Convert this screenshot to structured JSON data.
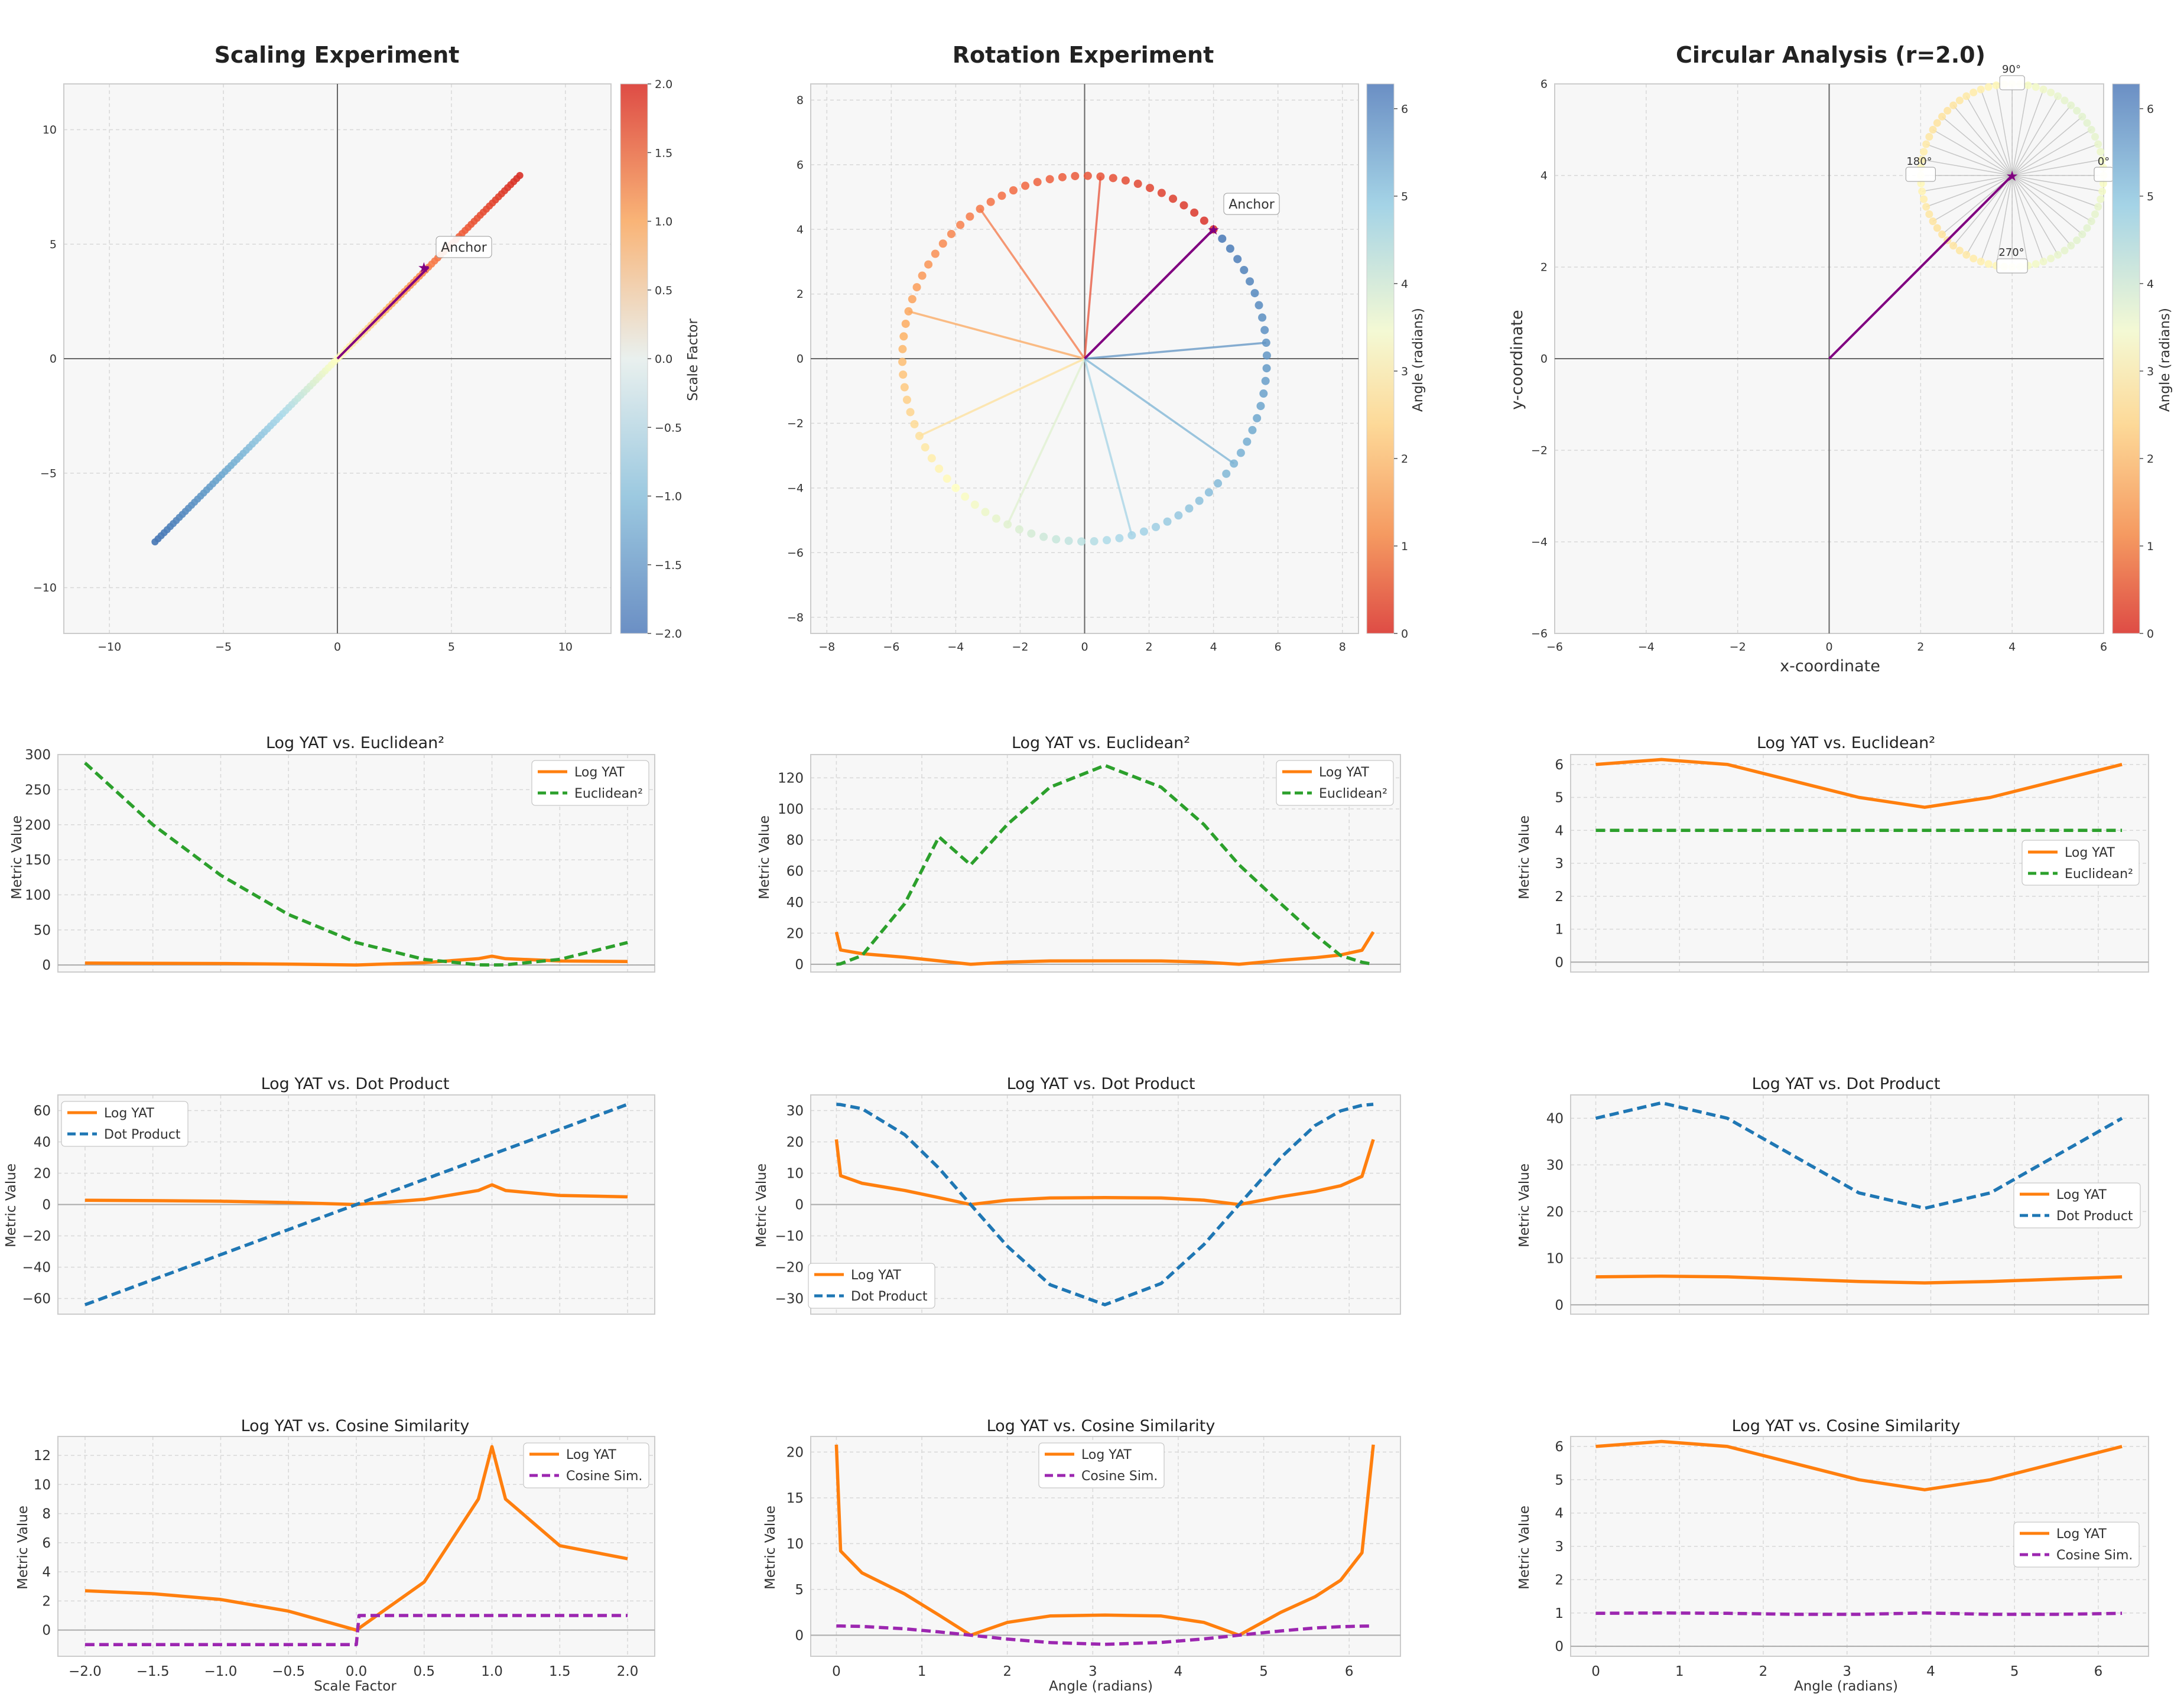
{
  "figure": {
    "panels": {
      "scaling": {
        "title": "Scaling Experiment",
        "anchor_label": "Anchor",
        "colorbar_label": "Scale Factor"
      },
      "rotation": {
        "title": "Rotation Experiment",
        "anchor_label": "Anchor",
        "colorbar_label": "Angle (radians)"
      },
      "circular": {
        "title": "Circular Analysis (r=2.0)",
        "xlabel": "x-coordinate",
        "ylabel": "y-coordinate",
        "colorbar_label": "Angle (radians)",
        "angle_labels": [
          "0°",
          "90°",
          "180°",
          "270°"
        ]
      }
    },
    "metric_titles": [
      "Log YAT vs. Euclidean²",
      "Log YAT vs. Dot Product",
      "Log YAT vs. Cosine Similarity"
    ],
    "metric_ylabel": "Metric Value",
    "legend": {
      "log_yat": "Log YAT",
      "euclidean": "Euclidean²",
      "dot": "Dot Product",
      "cosine": "Cosine Sim."
    },
    "xlabels": {
      "scale": "Scale Factor",
      "angle": "Angle (radians)"
    },
    "colors": {
      "log_yat": "#ff7f0e",
      "euclidean": "#2ca02c",
      "dot": "#1f77b4",
      "cosine": "#9c27b0",
      "anchor": "#800080"
    }
  },
  "chart_data": [
    {
      "id": "scaling_vectors",
      "type": "scatter",
      "title": "Scaling Experiment",
      "anchor": [
        4,
        4
      ],
      "scale_range": [
        -2,
        2
      ],
      "points": "anchor × scale factor",
      "xlim": [
        -12,
        12
      ],
      "ylim": [
        -12,
        12
      ],
      "xticks": [
        -10,
        -5,
        0,
        5,
        10
      ],
      "yticks": [
        -10,
        -5,
        0,
        5,
        10
      ],
      "colorbar": {
        "label": "Scale Factor",
        "range": [
          -2,
          2
        ],
        "ticks": [
          -2.0,
          -1.5,
          -1.0,
          -0.5,
          0.0,
          0.5,
          1.0,
          1.5,
          2.0
        ],
        "colormap": "RdYlBu"
      }
    },
    {
      "id": "rotation_vectors",
      "type": "scatter",
      "title": "Rotation Experiment",
      "anchor": [
        4,
        4
      ],
      "radius": 5.657,
      "angle_range": [
        0,
        6.283
      ],
      "xlim": [
        -8.5,
        8.5
      ],
      "ylim": [
        -8.5,
        8.5
      ],
      "xticks": [
        -8,
        -6,
        -4,
        -2,
        0,
        2,
        4,
        6,
        8
      ],
      "yticks": [
        -8,
        -6,
        -4,
        -2,
        0,
        2,
        4,
        6,
        8
      ],
      "colorbar": {
        "label": "Angle (radians)",
        "range": [
          0,
          6.283
        ],
        "ticks": [
          0,
          1,
          2,
          3,
          4,
          5,
          6
        ],
        "colormap": "RdYlBu"
      }
    },
    {
      "id": "circular_vectors",
      "type": "scatter",
      "title": "Circular Analysis (r=2.0)",
      "anchor": [
        4,
        4
      ],
      "radius": 2.0,
      "angle_range": [
        0,
        6.283
      ],
      "xlim": [
        -6,
        6
      ],
      "ylim": [
        -6,
        6
      ],
      "xticks": [
        -6,
        -4,
        -2,
        0,
        2,
        4,
        6
      ],
      "yticks": [
        -6,
        -4,
        -2,
        0,
        2,
        4,
        6
      ],
      "xlabel": "x-coordinate",
      "ylabel": "y-coordinate",
      "colorbar": {
        "label": "Angle (radians)",
        "range": [
          0,
          6.283
        ],
        "ticks": [
          0,
          1,
          2,
          3,
          4,
          5,
          6
        ],
        "colormap": "RdYlBu"
      }
    },
    {
      "id": "scale_euclid",
      "type": "line",
      "title": "Log YAT vs. Euclidean²",
      "x": [
        -2.0,
        -1.5,
        -1.0,
        -0.5,
        0.0,
        0.5,
        0.9,
        1.0,
        1.1,
        1.5,
        2.0
      ],
      "series": [
        {
          "name": "Log YAT",
          "values": [
            2.7,
            2.5,
            2.1,
            1.3,
            0.0,
            3.3,
            9.0,
            12.6,
            9.0,
            5.8,
            4.9
          ]
        },
        {
          "name": "Euclidean²",
          "values": [
            288,
            200,
            128,
            72,
            32,
            8,
            0.3,
            0,
            0.3,
            8,
            32
          ]
        }
      ],
      "ylim": [
        -10,
        300
      ],
      "yticks": [
        0,
        50,
        100,
        150,
        200,
        250,
        300
      ],
      "xlim": [
        -2.2,
        2.2
      ],
      "ylabel": "Metric Value",
      "legend": "top-right"
    },
    {
      "id": "rot_euclid",
      "type": "line",
      "title": "Log YAT vs. Euclidean²",
      "x": [
        0.0,
        0.05,
        0.3,
        0.8,
        1.2,
        1.571,
        2.0,
        2.5,
        3.142,
        3.8,
        4.3,
        4.712,
        5.2,
        5.6,
        5.9,
        6.15,
        6.283
      ],
      "series": [
        {
          "name": "Log YAT",
          "values": [
            20.8,
            9.2,
            6.8,
            4.5,
            2.2,
            0.0,
            1.4,
            2.1,
            2.2,
            2.1,
            1.4,
            0.0,
            2.5,
            4.2,
            6.0,
            9.0,
            20.8
          ]
        },
        {
          "name": "Euclidean²",
          "values": [
            0,
            0.3,
            5.6,
            39,
            82,
            64,
            90,
            114,
            128,
            114,
            90,
            64,
            39,
            19,
            5.6,
            1.3,
            0
          ]
        }
      ],
      "ylim": [
        -5,
        135
      ],
      "yticks": [
        0,
        20,
        40,
        60,
        80,
        100,
        120
      ],
      "xlim": [
        -0.3,
        6.6
      ],
      "ylabel": "Metric Value",
      "legend": "top-right"
    },
    {
      "id": "circ_euclid",
      "type": "line",
      "title": "Log YAT vs. Euclidean²",
      "x": [
        0.0,
        0.785,
        1.571,
        2.356,
        3.142,
        3.927,
        4.712,
        5.498,
        6.283
      ],
      "series": [
        {
          "name": "Log YAT",
          "values": [
            6.0,
            6.15,
            6.0,
            5.5,
            5.0,
            4.7,
            5.0,
            5.5,
            6.0
          ]
        },
        {
          "name": "Euclidean²",
          "values": [
            4,
            4,
            4,
            4,
            4,
            4,
            4,
            4,
            4
          ]
        }
      ],
      "ylim": [
        -0.3,
        6.3
      ],
      "yticks": [
        0,
        1,
        2,
        3,
        4,
        5,
        6
      ],
      "xlim": [
        -0.3,
        6.6
      ],
      "ylabel": "Metric Value",
      "legend": "center-right"
    },
    {
      "id": "scale_dot",
      "type": "line",
      "title": "Log YAT vs. Dot Product",
      "x": [
        -2.0,
        -1.5,
        -1.0,
        -0.5,
        0.0,
        0.5,
        0.9,
        1.0,
        1.1,
        1.5,
        2.0
      ],
      "series": [
        {
          "name": "Log YAT",
          "values": [
            2.7,
            2.5,
            2.1,
            1.3,
            0.0,
            3.3,
            9.0,
            12.6,
            9.0,
            5.8,
            4.9
          ]
        },
        {
          "name": "Dot Product",
          "values": [
            -64,
            -48,
            -32,
            -16,
            0,
            16,
            28.8,
            32,
            35.2,
            48,
            64
          ]
        }
      ],
      "ylim": [
        -70,
        70
      ],
      "yticks": [
        -60,
        -40,
        -20,
        0,
        20,
        40,
        60
      ],
      "xlim": [
        -2.2,
        2.2
      ],
      "ylabel": "Metric Value",
      "legend": "top-left"
    },
    {
      "id": "rot_dot",
      "type": "line",
      "title": "Log YAT vs. Dot Product",
      "x": [
        0.0,
        0.05,
        0.3,
        0.8,
        1.2,
        1.571,
        2.0,
        2.5,
        3.142,
        3.8,
        4.3,
        4.712,
        5.2,
        5.6,
        5.9,
        6.15,
        6.283
      ],
      "series": [
        {
          "name": "Log YAT",
          "values": [
            20.8,
            9.2,
            6.8,
            4.5,
            2.2,
            0.0,
            1.4,
            2.1,
            2.2,
            2.1,
            1.4,
            0.0,
            2.5,
            4.2,
            6.0,
            9.0,
            20.8
          ]
        },
        {
          "name": "Dot Product",
          "values": [
            32,
            31.9,
            30.6,
            22.3,
            11.6,
            0,
            -13.3,
            -25.6,
            -32,
            -25.2,
            -12.8,
            0,
            15,
            25.2,
            29.9,
            31.7,
            32
          ]
        }
      ],
      "ylim": [
        -35,
        35
      ],
      "yticks": [
        -30,
        -20,
        -10,
        0,
        10,
        20,
        30
      ],
      "xlim": [
        -0.3,
        6.6
      ],
      "ylabel": "Metric Value",
      "legend": "bottom-left"
    },
    {
      "id": "circ_dot",
      "type": "line",
      "title": "Log YAT vs. Dot Product",
      "x": [
        0.0,
        0.785,
        1.571,
        2.356,
        3.142,
        3.927,
        4.712,
        5.498,
        6.283
      ],
      "series": [
        {
          "name": "Log YAT",
          "values": [
            6.0,
            6.15,
            6.0,
            5.5,
            5.0,
            4.7,
            5.0,
            5.5,
            6.0
          ]
        },
        {
          "name": "Dot Product",
          "values": [
            40,
            43.3,
            40,
            32,
            24,
            20.7,
            24,
            32,
            40
          ]
        }
      ],
      "ylim": [
        -2,
        45
      ],
      "yticks": [
        0,
        10,
        20,
        30,
        40
      ],
      "xlim": [
        -0.3,
        6.6
      ],
      "ylabel": "Metric Value",
      "legend": "center-right"
    },
    {
      "id": "scale_cos",
      "type": "line",
      "title": "Log YAT vs. Cosine Similarity",
      "x": [
        -2.0,
        -1.5,
        -1.0,
        -0.5,
        0.0,
        0.5,
        0.9,
        1.0,
        1.1,
        1.5,
        2.0
      ],
      "series": [
        {
          "name": "Log YAT",
          "values": [
            2.7,
            2.5,
            2.1,
            1.3,
            0.0,
            3.3,
            9.0,
            12.6,
            9.0,
            5.8,
            4.9
          ]
        },
        {
          "name": "Cosine Sim.",
          "values": [
            -1,
            -1,
            -1,
            -1,
            1,
            1,
            1,
            1,
            1,
            1,
            1
          ]
        }
      ],
      "ylim": [
        -1.8,
        13.3
      ],
      "yticks": [
        0,
        2,
        4,
        6,
        8,
        10,
        12
      ],
      "xlim": [
        -2.2,
        2.2
      ],
      "xticks": [
        -2.0,
        -1.5,
        -1.0,
        -0.5,
        0.0,
        0.5,
        1.0,
        1.5,
        2.0
      ],
      "xlabel": "Scale Factor",
      "ylabel": "Metric Value",
      "legend": "top-right"
    },
    {
      "id": "rot_cos",
      "type": "line",
      "title": "Log YAT vs. Cosine Similarity",
      "x": [
        0.0,
        0.05,
        0.3,
        0.8,
        1.2,
        1.571,
        2.0,
        2.5,
        3.142,
        3.8,
        4.3,
        4.712,
        5.2,
        5.6,
        5.9,
        6.15,
        6.283
      ],
      "series": [
        {
          "name": "Log YAT",
          "values": [
            20.8,
            9.2,
            6.8,
            4.5,
            2.2,
            0.0,
            1.4,
            2.1,
            2.2,
            2.1,
            1.4,
            0.0,
            2.5,
            4.2,
            6.0,
            9.0,
            20.8
          ]
        },
        {
          "name": "Cosine Sim.",
          "values": [
            1.0,
            1.0,
            0.96,
            0.7,
            0.36,
            0.0,
            -0.42,
            -0.8,
            -1.0,
            -0.79,
            -0.4,
            0.0,
            0.47,
            0.79,
            0.93,
            0.99,
            1.0
          ]
        }
      ],
      "ylim": [
        -2.3,
        21.7
      ],
      "yticks": [
        0,
        5,
        10,
        15,
        20
      ],
      "xlim": [
        -0.3,
        6.6
      ],
      "xticks": [
        0,
        1,
        2,
        3,
        4,
        5,
        6
      ],
      "xlabel": "Angle (radians)",
      "ylabel": "Metric Value",
      "legend": "top-center"
    },
    {
      "id": "circ_cos",
      "type": "line",
      "title": "Log YAT vs. Cosine Similarity",
      "x": [
        0.0,
        0.785,
        1.571,
        2.356,
        3.142,
        3.927,
        4.712,
        5.498,
        6.283
      ],
      "series": [
        {
          "name": "Log YAT",
          "values": [
            6.0,
            6.15,
            6.0,
            5.5,
            5.0,
            4.7,
            5.0,
            5.5,
            6.0
          ]
        },
        {
          "name": "Cosine Sim.",
          "values": [
            0.99,
            1.0,
            0.99,
            0.96,
            0.96,
            1.0,
            0.96,
            0.96,
            0.99
          ]
        }
      ],
      "ylim": [
        -0.3,
        6.3
      ],
      "yticks": [
        0,
        1,
        2,
        3,
        4,
        5,
        6
      ],
      "xlim": [
        -0.3,
        6.6
      ],
      "xticks": [
        0,
        1,
        2,
        3,
        4,
        5,
        6
      ],
      "xlabel": "Angle (radians)",
      "ylabel": "Metric Value",
      "legend": "center-right"
    }
  ]
}
